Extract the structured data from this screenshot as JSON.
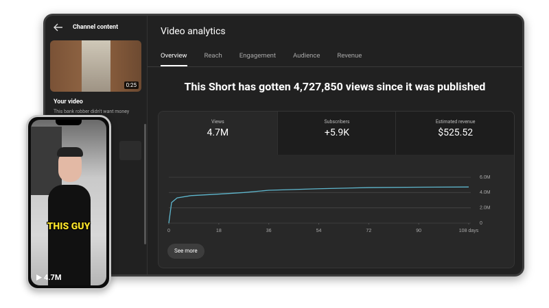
{
  "sidebar": {
    "title": "Channel content",
    "duration": "0:25",
    "video_label": "Your video",
    "video_desc": "This bank robber didn't want money"
  },
  "header": {
    "title": "Video analytics"
  },
  "tabs": [
    "Overview",
    "Reach",
    "Engagement",
    "Audience",
    "Revenue"
  ],
  "headline": "This Short has gotten 4,727,850 views since it was published",
  "metrics": [
    {
      "label": "Views",
      "value": "4.7M"
    },
    {
      "label": "Subscribers",
      "value": "+5.9K"
    },
    {
      "label": "Estimated revenue",
      "value": "$525.52"
    }
  ],
  "chart_data": {
    "type": "line",
    "color": "#5fb8cf",
    "x": [
      0,
      1,
      3,
      8,
      18,
      27,
      36,
      54,
      72,
      90,
      108
    ],
    "values": [
      0,
      2700000,
      3300000,
      3600000,
      3800000,
      4000000,
      4300000,
      4500000,
      4650000,
      4700000,
      4727850
    ],
    "xlim": [
      0,
      108
    ],
    "xticks": [
      0,
      18,
      36,
      54,
      72,
      90,
      {
        "value": 108,
        "label": "108 days"
      }
    ],
    "ylim": [
      0,
      6000000
    ],
    "yticks": [
      0,
      {
        "value": 2000000,
        "label": "2.0M"
      },
      {
        "value": 4000000,
        "label": "4.0M"
      },
      {
        "value": 6000000,
        "label": "6.0M"
      }
    ],
    "grid": true
  },
  "button": "See more",
  "phone": {
    "caption": "THIS GUY",
    "views": "4.7M"
  }
}
